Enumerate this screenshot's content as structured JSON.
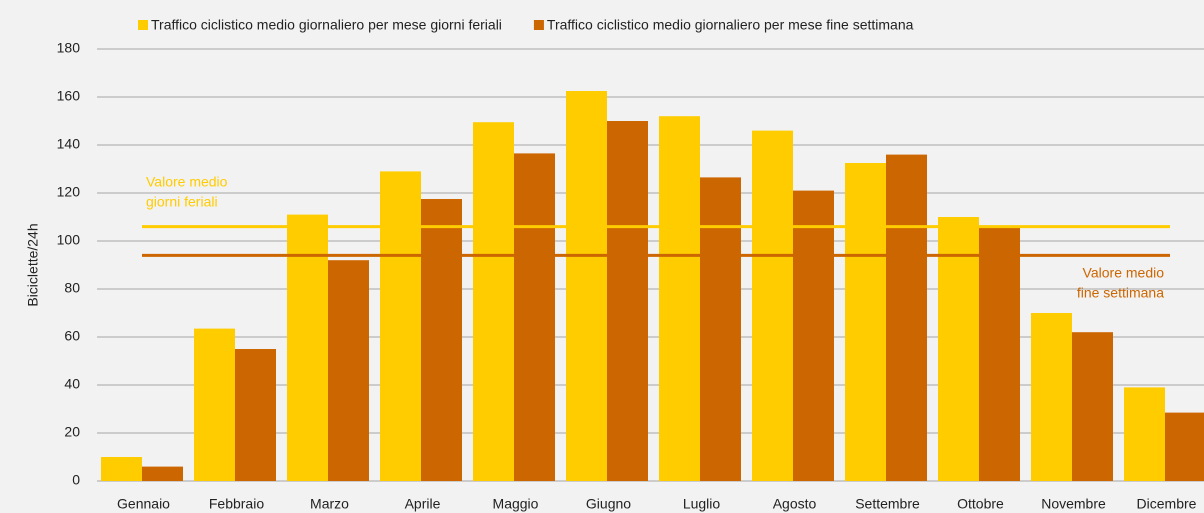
{
  "chart_data": {
    "type": "bar",
    "y_label": "Biciclette/24h",
    "categories": [
      "Gennaio",
      "Febbraio",
      "Marzo",
      "Aprile",
      "Maggio",
      "Giugno",
      "Luglio",
      "Agosto",
      "Settembre",
      "Ottobre",
      "Novembre",
      "Dicembre"
    ],
    "series": [
      {
        "name": "Traffico ciclistico medio giornaliero per mese giorni feriali",
        "color": "#ffcc00",
        "values": [
          10,
          63.5,
          111,
          129,
          149.5,
          162.5,
          152,
          146,
          132.5,
          110,
          70,
          39
        ]
      },
      {
        "name": "Traffico ciclistico medio giornaliero per mese fine settimana",
        "color": "#cc6600",
        "values": [
          6,
          55,
          92,
          117.5,
          136.5,
          150,
          126.5,
          121,
          136,
          105.5,
          62,
          28.5
        ]
      }
    ],
    "reference_lines": [
      {
        "label": [
          "Valore medio",
          "giorni feriali"
        ],
        "value": 106,
        "color": "#ffcc00"
      },
      {
        "label": [
          "Valore medio",
          "fine settimana"
        ],
        "value": 94,
        "color": "#cc6600"
      }
    ],
    "ylim": [
      0,
      180
    ],
    "yticks": [
      0,
      20,
      40,
      60,
      80,
      100,
      120,
      140,
      160,
      180
    ],
    "grid": true,
    "legend": "top"
  }
}
